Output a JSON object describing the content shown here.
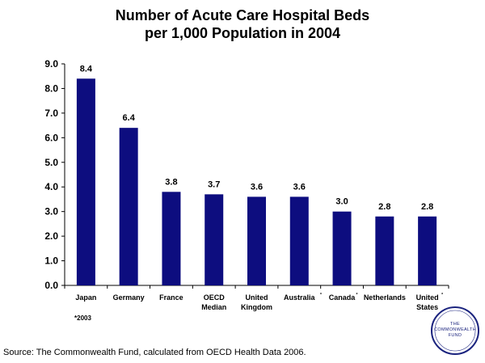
{
  "title_line1": "Number of Acute Care Hospital Beds",
  "title_line2": "per 1,000 Population in 2004",
  "footnote": "*2003",
  "source": "Source: The Commonwealth Fund, calculated from OECD Health Data 2006.",
  "logo_text": {
    "line1": "THE",
    "line2": "COMMONWEALTH",
    "line3": "FUND"
  },
  "colors": {
    "bar": "#0d0d7f",
    "logo": "#1a237e"
  },
  "chart_data": {
    "type": "bar",
    "title": "Number of Acute Care Hospital Beds per 1,000 Population in 2004",
    "categories": [
      {
        "lines": [
          "Japan"
        ],
        "mark": ""
      },
      {
        "lines": [
          "Germany"
        ],
        "mark": ""
      },
      {
        "lines": [
          "France"
        ],
        "mark": ""
      },
      {
        "lines": [
          "OECD",
          "Median"
        ],
        "mark": ""
      },
      {
        "lines": [
          "United",
          "Kingdom"
        ],
        "mark": ""
      },
      {
        "lines": [
          "Australia"
        ],
        "mark": "*"
      },
      {
        "lines": [
          "Canada"
        ],
        "mark": "*"
      },
      {
        "lines": [
          "Netherlands"
        ],
        "mark": ""
      },
      {
        "lines": [
          "United",
          "States"
        ],
        "mark": "*"
      }
    ],
    "values": [
      8.4,
      6.4,
      3.8,
      3.7,
      3.6,
      3.6,
      3.0,
      2.8,
      2.8
    ],
    "value_labels": [
      "8.4",
      "6.4",
      "3.8",
      "3.7",
      "3.6",
      "3.6",
      "3.0",
      "2.8",
      "2.8"
    ],
    "ylim": [
      0,
      9
    ],
    "yticks": [
      "0.0",
      "1.0",
      "2.0",
      "3.0",
      "4.0",
      "5.0",
      "6.0",
      "7.0",
      "8.0",
      "9.0"
    ],
    "grid": false,
    "legend": "none"
  }
}
